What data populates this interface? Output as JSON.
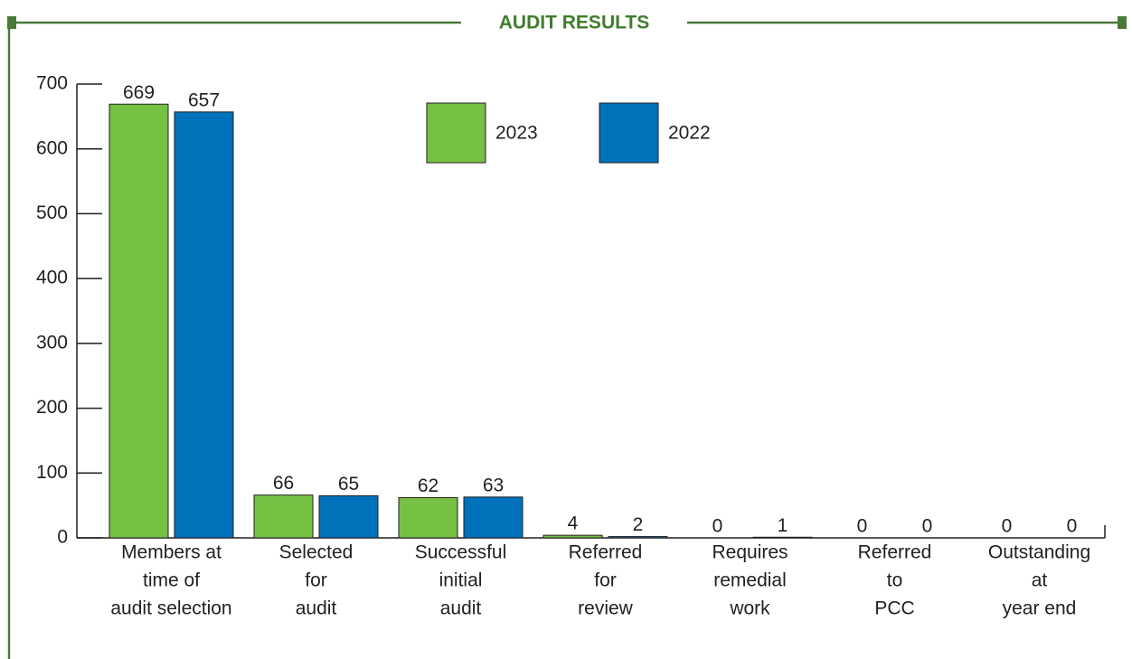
{
  "chart_data": {
    "type": "bar",
    "title": "AUDIT RESULTS",
    "categories": [
      [
        "Members at",
        "time of",
        "audit selection"
      ],
      [
        "Selected",
        "for",
        "audit"
      ],
      [
        "Successful",
        "initial",
        "audit"
      ],
      [
        "Referred",
        "for",
        "review"
      ],
      [
        "Requires",
        "remedial",
        "work"
      ],
      [
        "Referred",
        "to",
        "PCC"
      ],
      [
        "Outstanding",
        "at",
        "year end"
      ]
    ],
    "series": [
      {
        "name": "2023",
        "color": "#76c043",
        "values": [
          669,
          66,
          62,
          4,
          0,
          0,
          0
        ]
      },
      {
        "name": "2022",
        "color": "#0072bc",
        "values": [
          657,
          65,
          63,
          2,
          1,
          0,
          0
        ]
      }
    ],
    "ylim": [
      0,
      700
    ],
    "yticks": [
      0,
      100,
      200,
      300,
      400,
      500,
      600,
      700
    ]
  }
}
